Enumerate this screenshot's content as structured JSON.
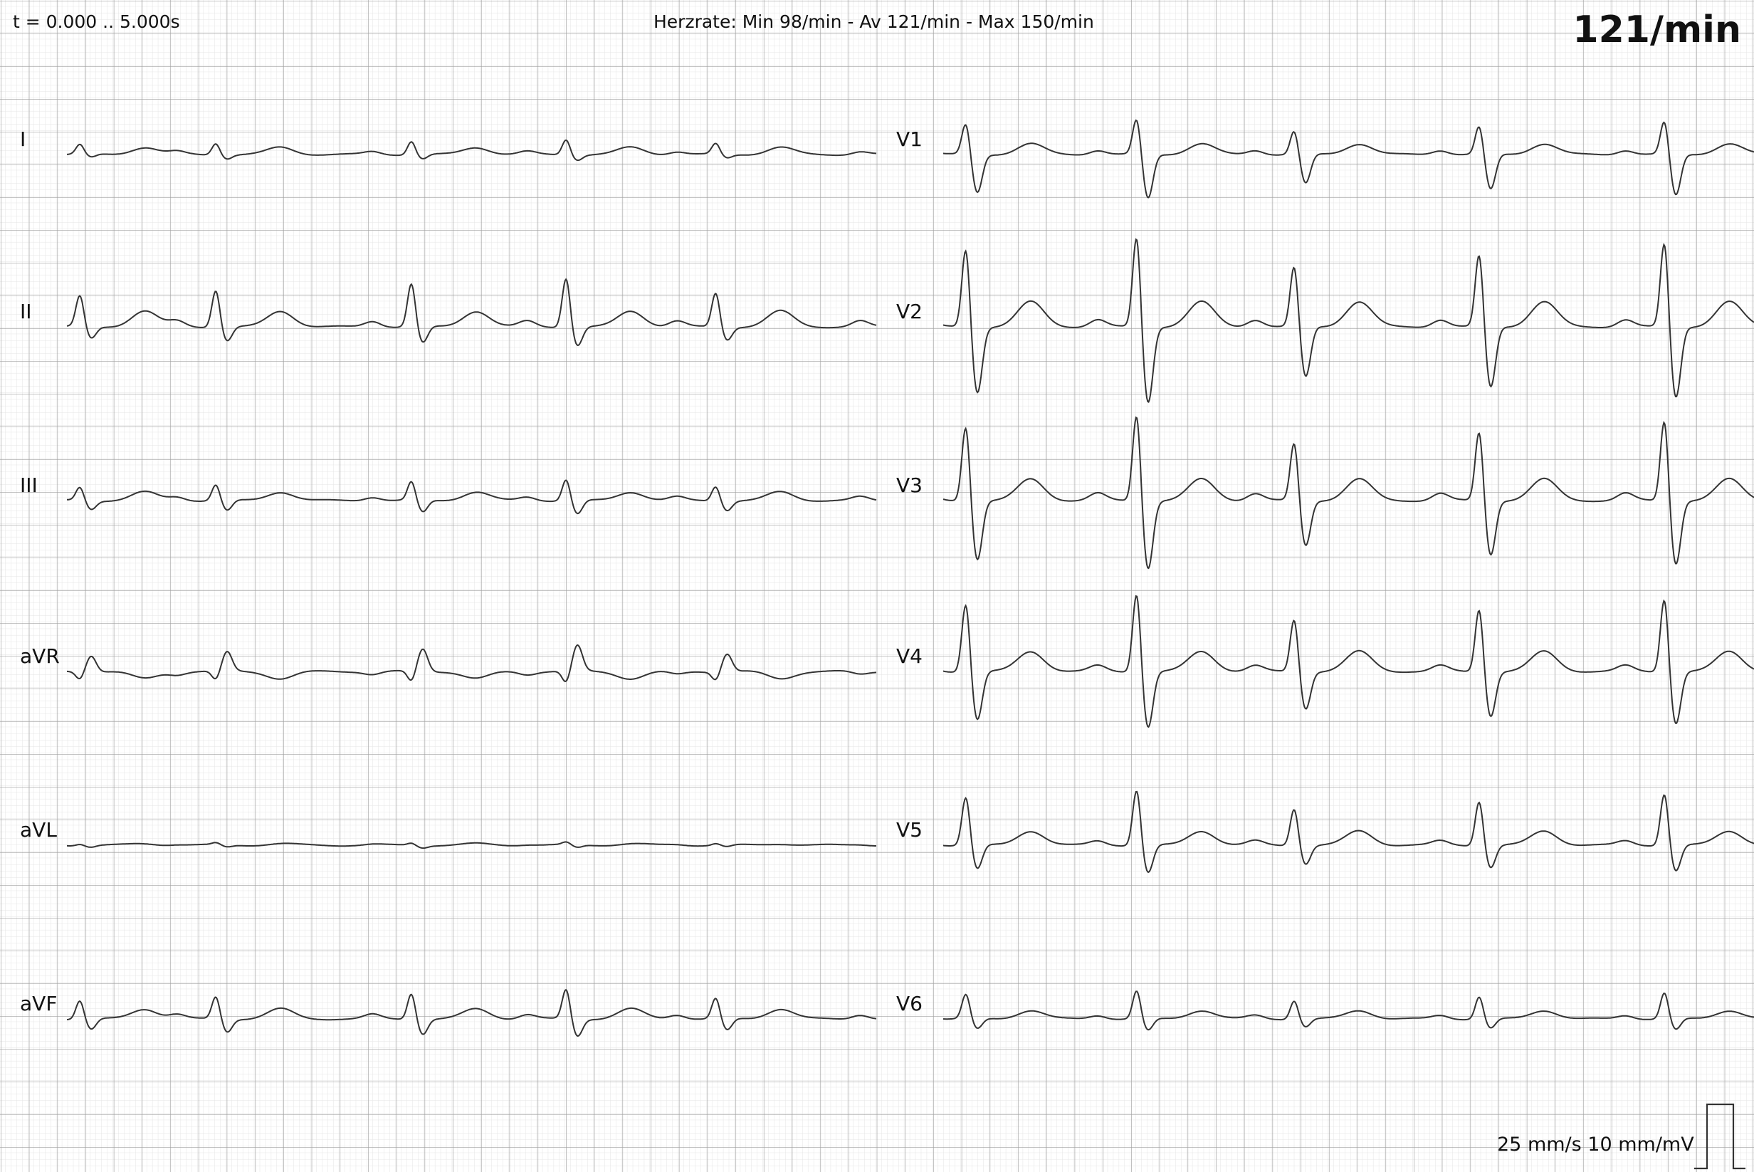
{
  "header": {
    "time_range": "t = 0.000 .. 5.000s",
    "heart_rate_summary": "Herzrate: Min 98/min - Av 121/min - Max 150/min",
    "heart_rate": "121/min"
  },
  "footer": {
    "scale": "25 mm/s  10 mm/mV"
  },
  "colors": {
    "grid_minor": "#e6e6e6",
    "grid_major": "#9a9a9a",
    "trace": "#333333"
  },
  "chart_data": {
    "type": "line",
    "title": "",
    "xlabel": "",
    "ylabel": "",
    "x_unit": "s",
    "xlim": [
      0,
      5
    ],
    "paper_speed_mm_per_s": 25,
    "gain_mm_per_mv": 10,
    "grid": true,
    "heart_rate_bpm": {
      "min": 98,
      "avg": 121,
      "max": 150
    },
    "leads": [
      {
        "name": "I",
        "column": "left"
      },
      {
        "name": "II",
        "column": "left"
      },
      {
        "name": "III",
        "column": "left"
      },
      {
        "name": "aVR",
        "column": "left"
      },
      {
        "name": "aVL",
        "column": "left"
      },
      {
        "name": "aVF",
        "column": "left"
      },
      {
        "name": "V1",
        "column": "right"
      },
      {
        "name": "V2",
        "column": "right"
      },
      {
        "name": "V3",
        "column": "right"
      },
      {
        "name": "V4",
        "column": "right"
      },
      {
        "name": "V5",
        "column": "right"
      },
      {
        "name": "V6",
        "column": "right"
      }
    ]
  }
}
